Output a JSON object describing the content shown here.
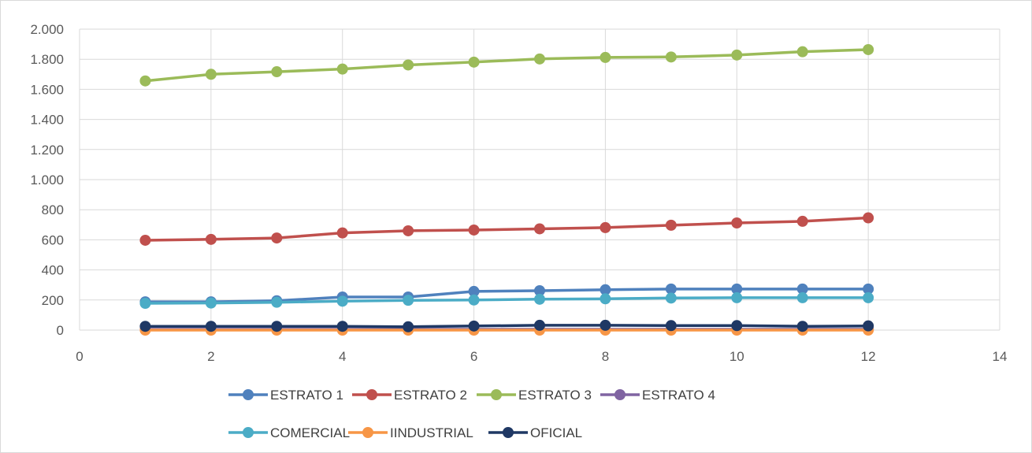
{
  "chart_data": {
    "type": "line",
    "title": "",
    "xlabel": "",
    "ylabel": "",
    "xlim": [
      0,
      14
    ],
    "ylim": [
      0,
      2000
    ],
    "x_ticks": [
      0,
      2,
      4,
      6,
      8,
      10,
      12,
      14
    ],
    "x_tick_labels": [
      "0",
      "2",
      "4",
      "6",
      "8",
      "10",
      "12",
      "14"
    ],
    "y_ticks": [
      0,
      200,
      400,
      600,
      800,
      1000,
      1200,
      1400,
      1600,
      1800,
      2000
    ],
    "y_tick_labels": [
      "0",
      "200",
      "400",
      "600",
      "800",
      "1.000",
      "1.200",
      "1.400",
      "1.600",
      "1.800",
      "2.000"
    ],
    "grid": true,
    "legend_position": "bottom",
    "x": [
      1,
      2,
      3,
      4,
      5,
      6,
      7,
      8,
      9,
      10,
      11,
      12
    ],
    "series": [
      {
        "name": "ESTRATO 1",
        "color": "#4f81bd",
        "values": [
          188,
          188,
          195,
          220,
          220,
          257,
          262,
          268,
          273,
          273,
          273,
          273
        ]
      },
      {
        "name": "ESTRATO 2",
        "color": "#c0504d",
        "values": [
          597,
          603,
          612,
          646,
          660,
          665,
          673,
          681,
          697,
          712,
          723,
          746
        ]
      },
      {
        "name": "ESTRATO 3",
        "color": "#9bbb59",
        "values": [
          1656,
          1700,
          1717,
          1735,
          1762,
          1781,
          1802,
          1812,
          1815,
          1828,
          1850,
          1864
        ]
      },
      {
        "name": "ESTRATO 4",
        "color": "#8064a2",
        "values": [
          5,
          5,
          5,
          5,
          5,
          5,
          5,
          5,
          5,
          5,
          5,
          5
        ]
      },
      {
        "name": "COMERCIAL",
        "color": "#4bacc6",
        "values": [
          178,
          180,
          185,
          192,
          198,
          200,
          205,
          208,
          213,
          215,
          215,
          215
        ]
      },
      {
        "name": "IINDUSTRIAL",
        "color": "#f79646",
        "values": [
          0,
          0,
          0,
          0,
          0,
          0,
          0,
          0,
          0,
          0,
          0,
          0
        ]
      },
      {
        "name": "OFICIAL",
        "color": "#1f3864",
        "values": [
          25,
          25,
          25,
          25,
          22,
          27,
          32,
          32,
          30,
          30,
          25,
          28
        ]
      }
    ]
  }
}
